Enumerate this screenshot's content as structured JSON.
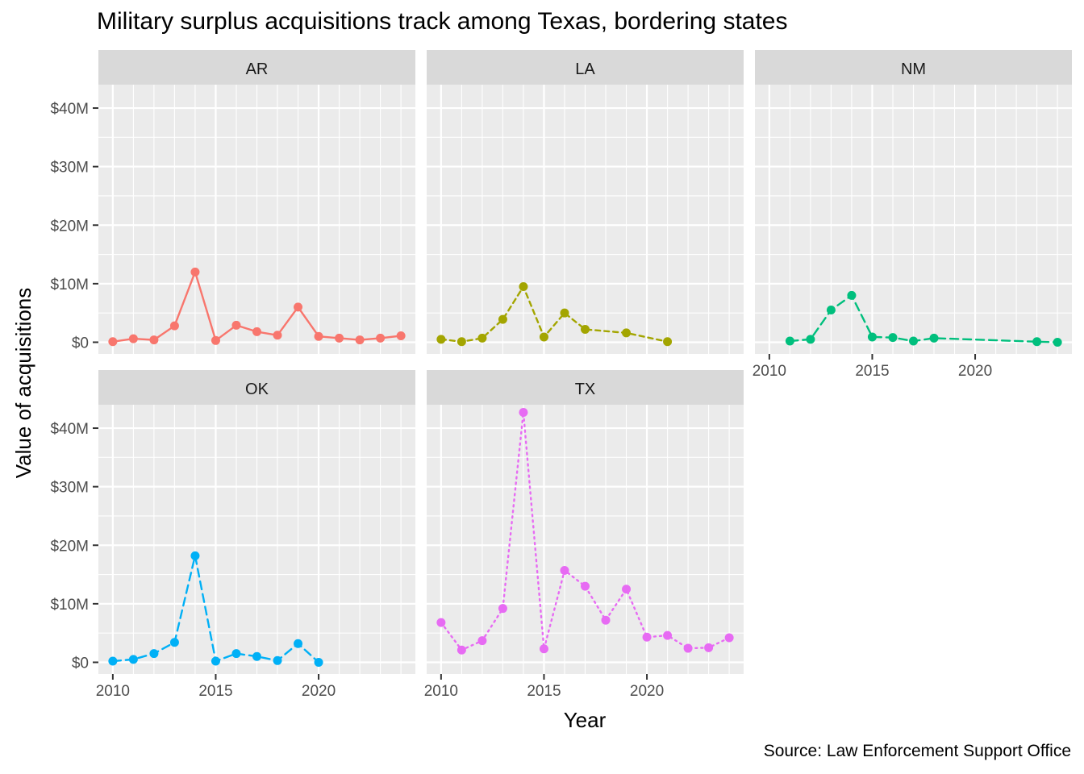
{
  "chart_data": {
    "type": "line",
    "title": "Military surplus acquisitions track among Texas, bordering states",
    "xlabel": "Year",
    "ylabel": "Value of acquisitions",
    "caption": "Source: Law Enforcement Support Office",
    "xlim": [
      2009.3,
      2024.7
    ],
    "ylim": [
      -2,
      44
    ],
    "x_ticks": [
      2010,
      2015,
      2020
    ],
    "y_ticks": [
      0,
      10,
      20,
      30,
      40
    ],
    "y_tick_labels": [
      "$0",
      "$10M",
      "$20M",
      "$30M",
      "$40M"
    ],
    "y_unit": "millions of dollars",
    "grid": true,
    "legend": "none",
    "facets": [
      {
        "name": "AR",
        "color": "#F8766D",
        "linetype": "solid",
        "x": [
          2010,
          2011,
          2012,
          2013,
          2014,
          2015,
          2016,
          2017,
          2018,
          2019,
          2020,
          2021,
          2022,
          2023,
          2024
        ],
        "y": [
          0.1,
          0.6,
          0.4,
          2.8,
          12.0,
          0.3,
          2.9,
          1.8,
          1.2,
          6.0,
          1.0,
          0.7,
          0.4,
          0.7,
          1.1
        ]
      },
      {
        "name": "LA",
        "color": "#A3A500",
        "linetype": "dashed",
        "x": [
          2010,
          2011,
          2012,
          2013,
          2014,
          2015,
          2016,
          2017,
          2019,
          2021
        ],
        "y": [
          0.5,
          0.1,
          0.7,
          3.9,
          9.5,
          0.9,
          5.0,
          2.2,
          1.6,
          0.1
        ]
      },
      {
        "name": "NM",
        "color": "#00BF7D",
        "linetype": "longdash",
        "x": [
          2011,
          2012,
          2013,
          2014,
          2015,
          2016,
          2017,
          2018,
          2023,
          2024
        ],
        "y": [
          0.2,
          0.5,
          5.5,
          8.0,
          0.9,
          0.8,
          0.2,
          0.7,
          0.1,
          0.0
        ]
      },
      {
        "name": "OK",
        "color": "#00B0F6",
        "linetype": "longdash",
        "x": [
          2010,
          2011,
          2012,
          2013,
          2014,
          2015,
          2016,
          2017,
          2018,
          2019,
          2020
        ],
        "y": [
          0.2,
          0.5,
          1.5,
          3.4,
          18.2,
          0.2,
          1.5,
          1.0,
          0.3,
          3.2,
          0.0
        ]
      },
      {
        "name": "TX",
        "color": "#E76BF3",
        "linetype": "dotted",
        "x": [
          2010,
          2011,
          2012,
          2013,
          2014,
          2015,
          2016,
          2017,
          2018,
          2019,
          2020,
          2021,
          2022,
          2023,
          2024
        ],
        "y": [
          6.8,
          2.1,
          3.7,
          9.2,
          42.7,
          2.3,
          15.7,
          13.0,
          7.2,
          12.5,
          4.3,
          4.6,
          2.4,
          2.5,
          4.2
        ]
      }
    ]
  }
}
